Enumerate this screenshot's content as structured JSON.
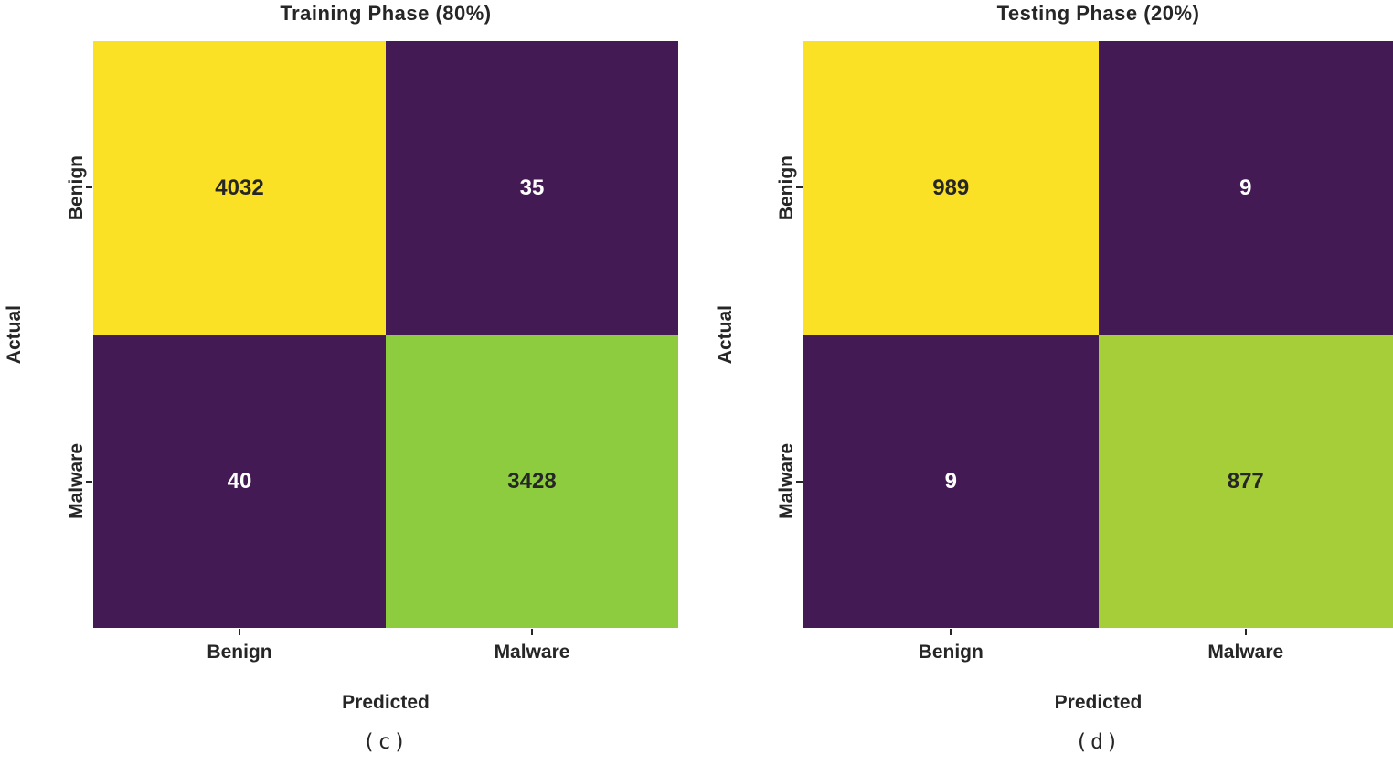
{
  "figure": {
    "description": "Two confusion matrix heatmaps side by side",
    "text_color": "#262626",
    "background_color": "#ffffff"
  },
  "chart_data": [
    {
      "type": "heatmap",
      "title": "Training Phase (80%)",
      "xlabel": "Predicted",
      "ylabel": "Actual",
      "caption": "(c)",
      "x_categories": [
        "Benign",
        "Malware"
      ],
      "y_categories": [
        "Benign",
        "Malware"
      ],
      "values": [
        [
          4032,
          35
        ],
        [
          40,
          3428
        ]
      ],
      "colormap": "viridis",
      "legend": "none",
      "grid": false,
      "cell_bg": [
        [
          "#fae125",
          "#431a53"
        ],
        [
          "#431a53",
          "#8ccc3e"
        ]
      ],
      "cell_fg": [
        [
          "#262626",
          "#ffffff"
        ],
        [
          "#ffffff",
          "#262626"
        ]
      ]
    },
    {
      "type": "heatmap",
      "title": "Testing Phase (20%)",
      "xlabel": "Predicted",
      "ylabel": "Actual",
      "caption": "(d)",
      "x_categories": [
        "Benign",
        "Malware"
      ],
      "y_categories": [
        "Benign",
        "Malware"
      ],
      "values": [
        [
          989,
          9
        ],
        [
          9,
          877
        ]
      ],
      "colormap": "viridis",
      "legend": "none",
      "grid": false,
      "cell_bg": [
        [
          "#fae125",
          "#431a53"
        ],
        [
          "#431a53",
          "#a5ce39"
        ]
      ],
      "cell_fg": [
        [
          "#262626",
          "#ffffff"
        ],
        [
          "#ffffff",
          "#262626"
        ]
      ]
    }
  ]
}
